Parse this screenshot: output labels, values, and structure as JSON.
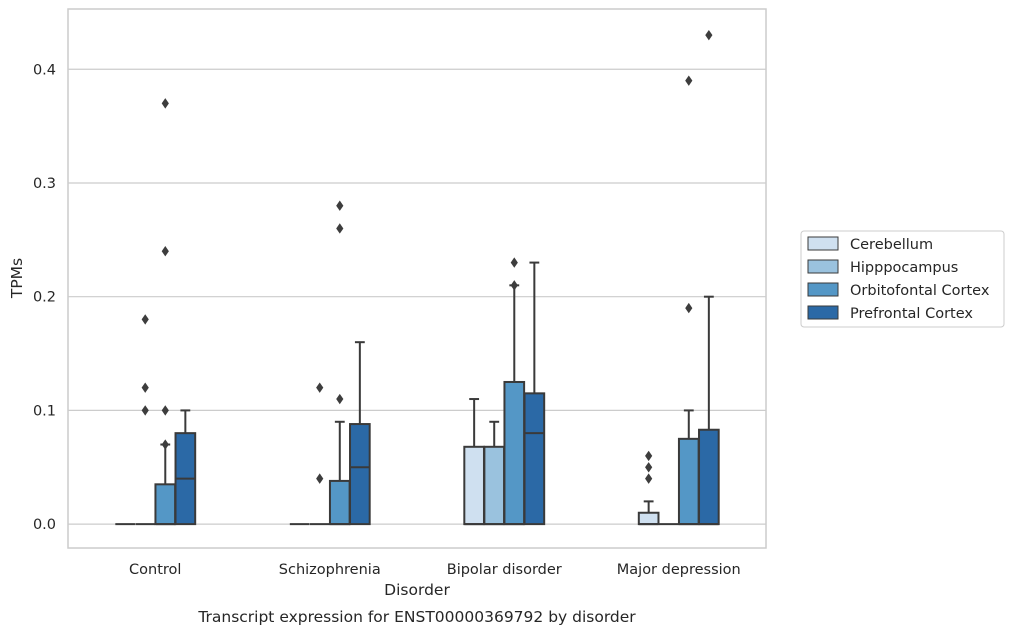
{
  "chart_data": {
    "type": "box",
    "caption": "Transcript expression for ENST00000369792 by disorder",
    "xlabel": "Disorder",
    "ylabel": "TPMs",
    "ylim": [
      -0.021,
      0.453
    ],
    "yticks": [
      0.0,
      0.1,
      0.2,
      0.3,
      0.4
    ],
    "ytick_labels": [
      "0.0",
      "0.1",
      "0.2",
      "0.3",
      "0.4"
    ],
    "grid": "horizontal",
    "legend_position": "right",
    "categories": [
      "Control",
      "Schizophrenia",
      "Bipolar disorder",
      "Major depression"
    ],
    "series": [
      {
        "name": "Cerebellum",
        "color": "#cfe0f0",
        "boxes": [
          {
            "q1": 0,
            "median": 0,
            "q3": 0,
            "whisker_low": 0,
            "whisker_high": 0,
            "outliers": []
          },
          {
            "q1": 0,
            "median": 0,
            "q3": 0,
            "whisker_low": 0,
            "whisker_high": 0,
            "outliers": []
          },
          {
            "q1": 0,
            "median": 0,
            "q3": 0.068,
            "whisker_low": 0,
            "whisker_high": 0.11,
            "outliers": []
          },
          {
            "q1": 0,
            "median": 0,
            "q3": 0.01,
            "whisker_low": 0,
            "whisker_high": 0.02,
            "outliers": [
              0.04,
              0.05,
              0.06
            ]
          }
        ]
      },
      {
        "name": "Hipppocampus",
        "color": "#9ac2de",
        "boxes": [
          {
            "q1": 0,
            "median": 0,
            "q3": 0,
            "whisker_low": 0,
            "whisker_high": 0,
            "outliers": [
              0.1,
              0.12,
              0.18
            ]
          },
          {
            "q1": 0,
            "median": 0,
            "q3": 0,
            "whisker_low": 0,
            "whisker_high": 0,
            "outliers": [
              0.04,
              0.12
            ]
          },
          {
            "q1": 0,
            "median": 0,
            "q3": 0.068,
            "whisker_low": 0,
            "whisker_high": 0.09,
            "outliers": []
          },
          {
            "q1": 0,
            "median": 0,
            "q3": 0,
            "whisker_low": 0,
            "whisker_high": 0,
            "outliers": []
          }
        ]
      },
      {
        "name": "Orbitofontal Cortex",
        "color": "#5497c6",
        "boxes": [
          {
            "q1": 0,
            "median": 0,
            "q3": 0.035,
            "whisker_low": 0,
            "whisker_high": 0.07,
            "outliers": [
              0.07,
              0.1,
              0.24,
              0.37
            ]
          },
          {
            "q1": 0,
            "median": 0,
            "q3": 0.038,
            "whisker_low": 0,
            "whisker_high": 0.09,
            "outliers": [
              0.11,
              0.26,
              0.28
            ]
          },
          {
            "q1": 0,
            "median": 0,
            "q3": 0.125,
            "whisker_low": 0,
            "whisker_high": 0.21,
            "outliers": [
              0.21,
              0.23
            ]
          },
          {
            "q1": 0,
            "median": 0,
            "q3": 0.075,
            "whisker_low": 0,
            "whisker_high": 0.1,
            "outliers": [
              0.19,
              0.39
            ]
          }
        ]
      },
      {
        "name": "Prefrontal Cortex",
        "color": "#2b69a6",
        "boxes": [
          {
            "q1": 0,
            "median": 0.04,
            "q3": 0.08,
            "whisker_low": 0,
            "whisker_high": 0.1,
            "outliers": []
          },
          {
            "q1": 0,
            "median": 0.05,
            "q3": 0.088,
            "whisker_low": 0,
            "whisker_high": 0.16,
            "outliers": []
          },
          {
            "q1": 0,
            "median": 0.08,
            "q3": 0.115,
            "whisker_low": 0,
            "whisker_high": 0.23,
            "outliers": []
          },
          {
            "q1": 0,
            "median": 0,
            "q3": 0.083,
            "whisker_low": 0,
            "whisker_high": 0.2,
            "outliers": [
              0.43
            ]
          }
        ]
      }
    ]
  }
}
